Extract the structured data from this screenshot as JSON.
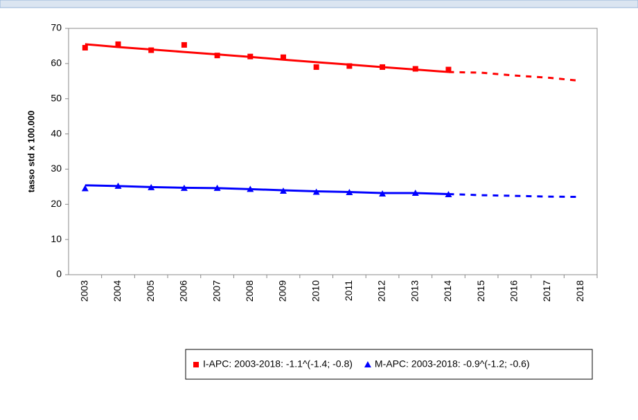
{
  "chart_data": {
    "type": "line",
    "y_label": "tasso std x 100.000",
    "categories": [
      "2003",
      "2004",
      "2005",
      "2006",
      "2007",
      "2008",
      "2009",
      "2010",
      "2011",
      "2012",
      "2013",
      "2014",
      "2015",
      "2016",
      "2017",
      "2018"
    ],
    "ylim": [
      0,
      70
    ],
    "yticks": [
      0,
      10,
      20,
      30,
      40,
      50,
      60,
      70
    ],
    "series": [
      {
        "name": "I-APC: 2003-2018: -1.1^(-1.4; -0.8)",
        "color": "#ff0000",
        "marker": "square",
        "values": [
          64.5,
          65.5,
          63.8,
          65.3,
          62.3,
          62.0,
          61.8,
          59.0,
          59.3,
          59.0,
          58.5,
          58.3,
          null,
          null,
          null,
          null
        ]
      },
      {
        "color": "#ff0000",
        "style": "solid",
        "values": [
          65.5,
          64.7,
          64.0,
          63.3,
          62.6,
          61.9,
          61.1,
          60.4,
          59.7,
          59.0,
          58.3,
          57.6,
          null,
          null,
          null,
          null
        ]
      },
      {
        "color": "#ff0000",
        "style": "dashed",
        "values": [
          null,
          null,
          null,
          null,
          null,
          null,
          null,
          null,
          null,
          null,
          null,
          57.6,
          57.4,
          56.6,
          56.0,
          55.1
        ]
      },
      {
        "name": "M-APC: 2003-2018: -0.9^(-1.2; -0.6)",
        "color": "#0000ff",
        "marker": "triangle",
        "values": [
          24.5,
          25.2,
          24.8,
          24.6,
          24.6,
          24.3,
          23.8,
          23.5,
          23.4,
          23.0,
          23.2,
          22.8,
          null,
          null,
          null,
          null
        ]
      },
      {
        "color": "#0000ff",
        "style": "solid",
        "values": [
          25.4,
          25.2,
          24.9,
          24.7,
          24.6,
          24.3,
          24.0,
          23.7,
          23.5,
          23.2,
          23.2,
          22.9,
          null,
          null,
          null,
          null
        ]
      },
      {
        "color": "#0000ff",
        "style": "dashed",
        "values": [
          null,
          null,
          null,
          null,
          null,
          null,
          null,
          null,
          null,
          null,
          null,
          22.9,
          22.6,
          22.4,
          22.2,
          22.1
        ]
      }
    ]
  }
}
